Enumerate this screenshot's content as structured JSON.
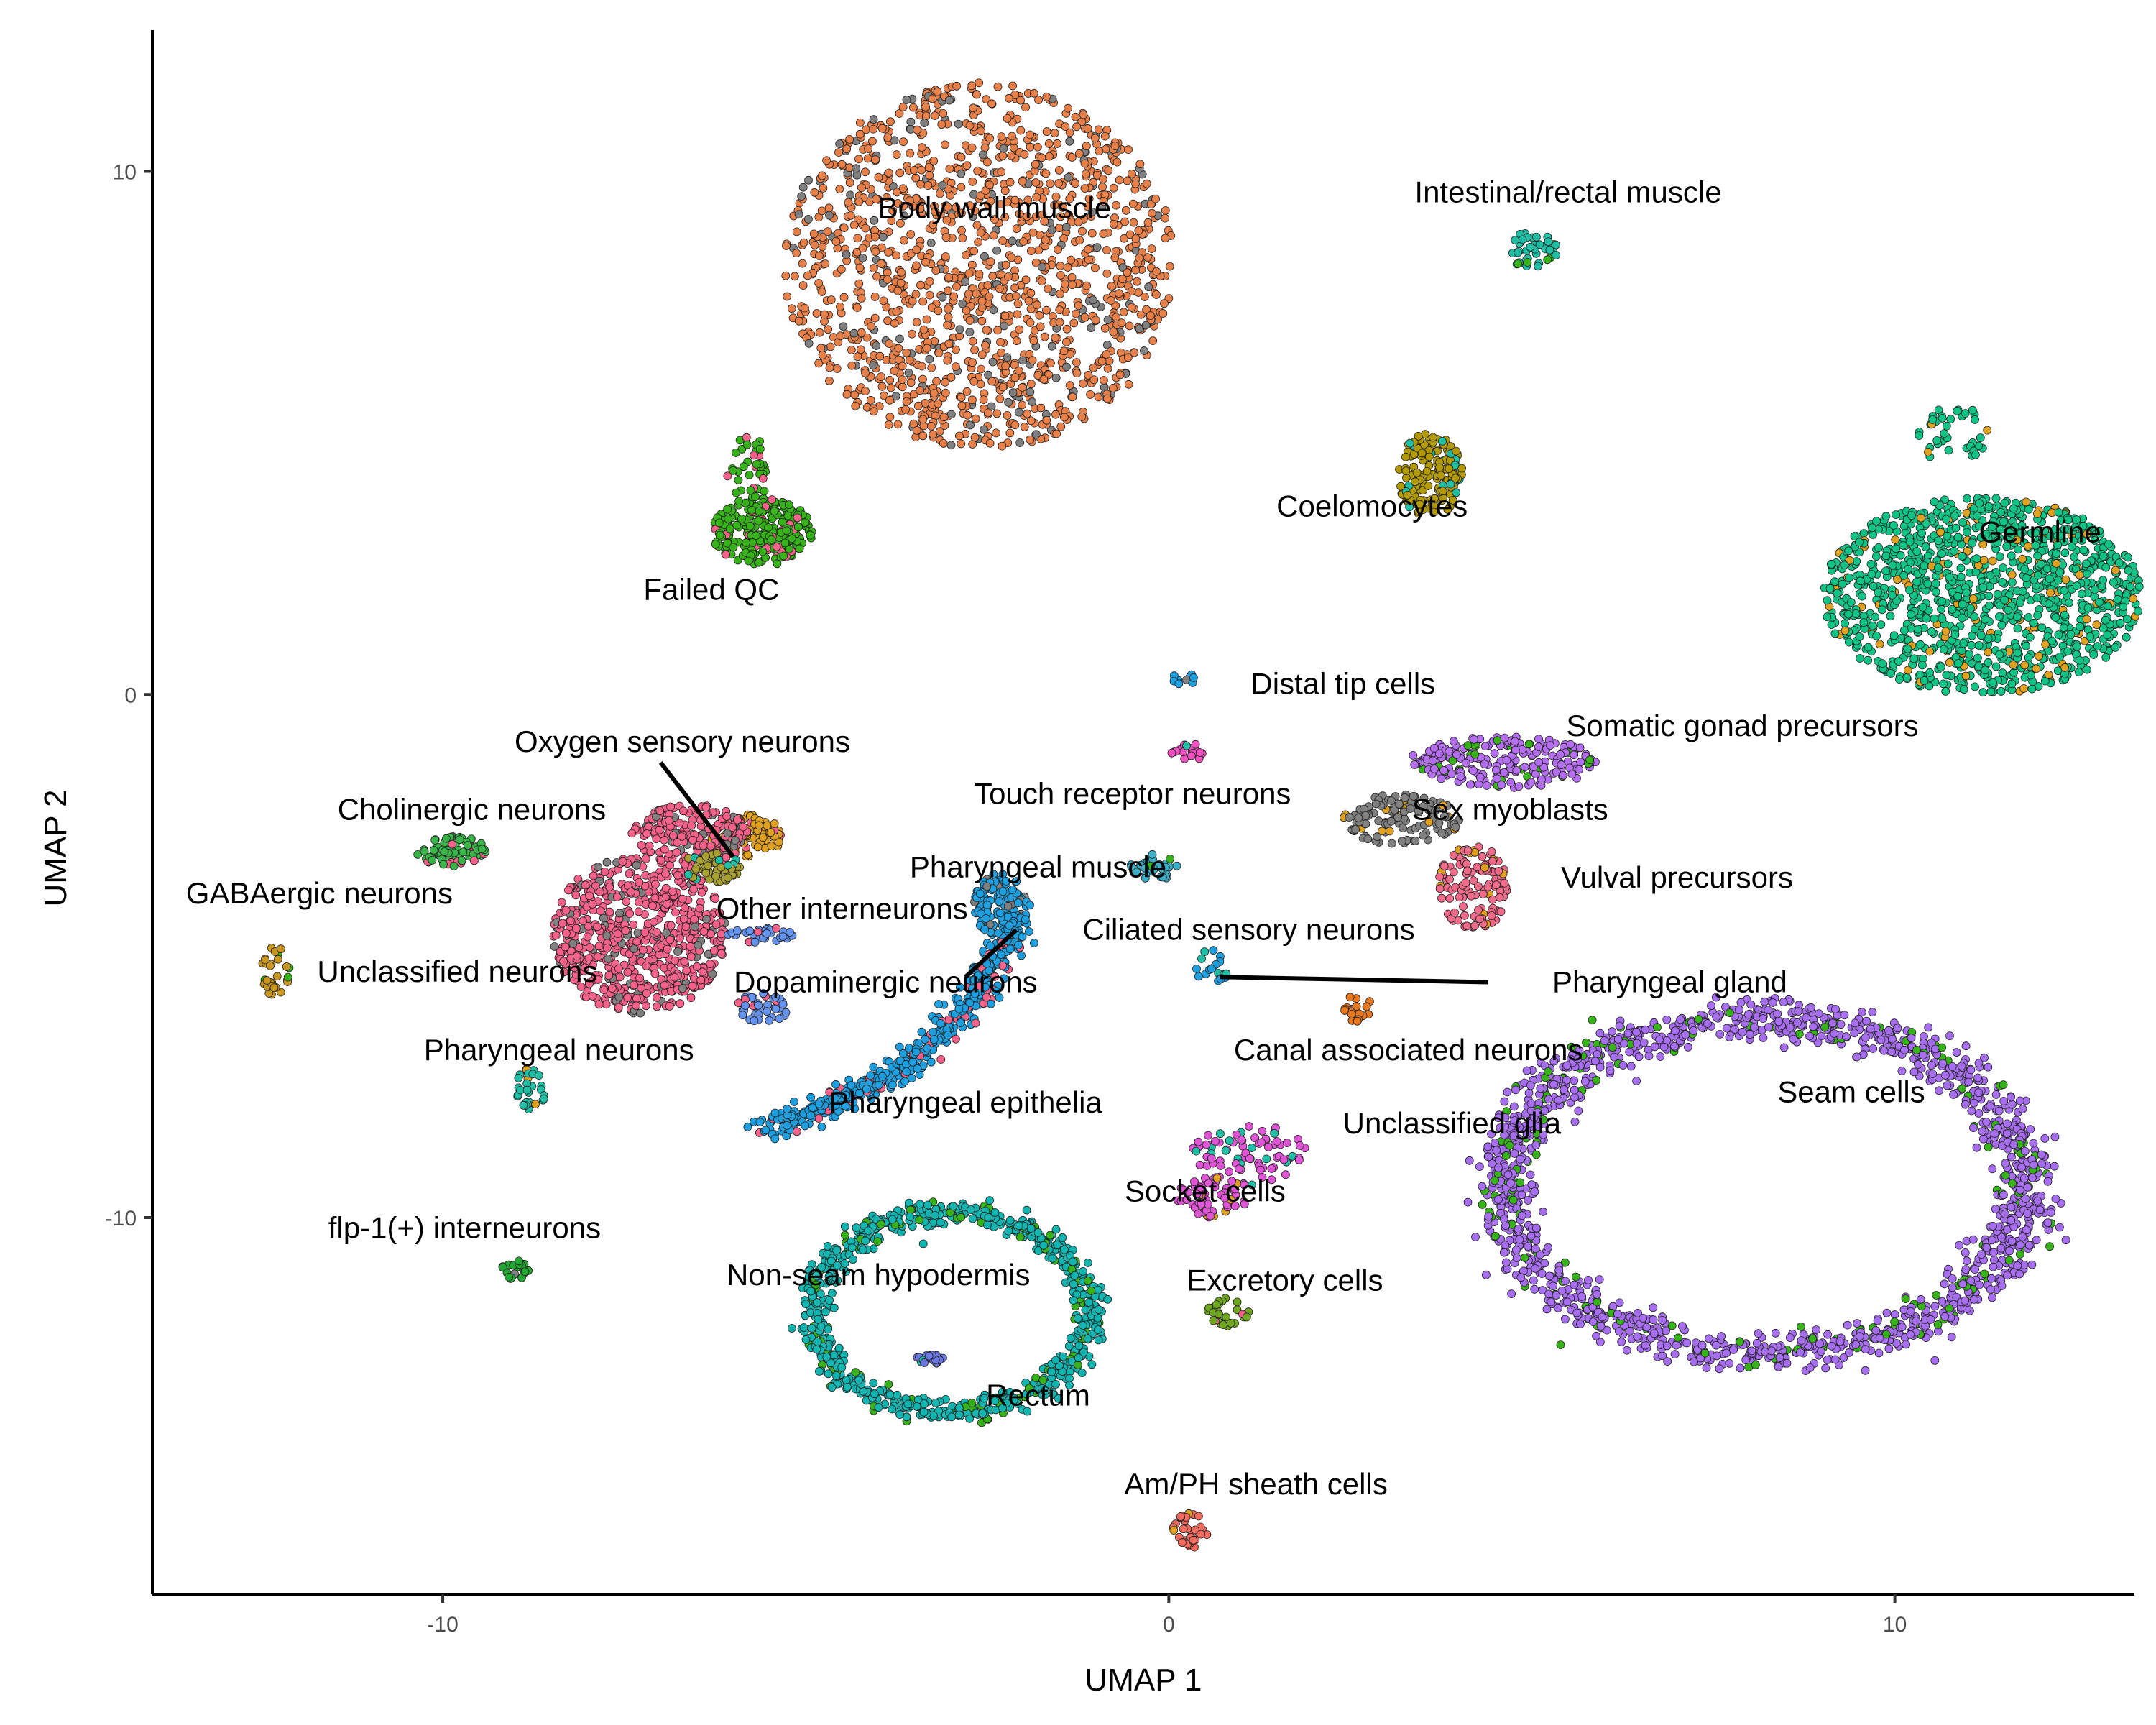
{
  "chart_data": {
    "type": "scatter",
    "title": "",
    "xlabel": "UMAP 1",
    "ylabel": "UMAP 2",
    "xlim": [
      -14,
      13.3
    ],
    "ylim": [
      -17.2,
      12.7
    ],
    "xticks": [
      -10,
      0,
      10
    ],
    "yticks": [
      10,
      0,
      -10
    ],
    "grid": false,
    "legend": "none",
    "clusters": [
      {
        "label": "Body wall muscle",
        "color": "#E8804A",
        "blobs": [
          [
            -2.6,
            8.2,
            2.7,
            3.5,
            1400
          ]
        ],
        "label_pos": [
          -2.4,
          9.3
        ]
      },
      {
        "label": "Intestinal/rectal muscle",
        "color": "#1FBFA6",
        "blobs": [
          [
            5.0,
            8.5,
            0.35,
            0.35,
            40
          ]
        ],
        "label_pos": [
          5.5,
          9.6
        ]
      },
      {
        "label": "Failed QC",
        "color": "#37B31A",
        "blobs": [
          [
            -5.6,
            3.1,
            0.7,
            0.65,
            250
          ],
          [
            -5.8,
            4.3,
            0.3,
            0.7,
            40
          ]
        ],
        "label_pos": [
          -6.3,
          2.0
        ]
      },
      {
        "label": "Coelomocytes",
        "color": "#B39A00",
        "blobs": [
          [
            3.6,
            4.2,
            0.45,
            0.8,
            160
          ]
        ],
        "label_pos": [
          2.8,
          3.6
        ]
      },
      {
        "label": "Germline",
        "color": "#10C485",
        "blobs": [
          [
            11.2,
            1.9,
            2.2,
            1.9,
            1200
          ],
          [
            10.8,
            5.0,
            0.5,
            0.6,
            40
          ]
        ],
        "label_pos": [
          12.0,
          3.1
        ]
      },
      {
        "label": "Distal tip cells",
        "color": "#1E9FE0",
        "blobs": [
          [
            0.2,
            0.3,
            0.15,
            0.15,
            10
          ]
        ],
        "label_pos": [
          2.4,
          0.2
        ]
      },
      {
        "label": "Somatic gonad precursors",
        "color": "#B56EF0",
        "blobs": [
          [
            4.6,
            -1.3,
            1.3,
            0.5,
            220
          ]
        ],
        "label_pos": [
          7.9,
          -0.6
        ]
      },
      {
        "label": "Oxygen sensory neurons",
        "color": "#E0A020",
        "blobs": [
          [
            -5.8,
            -2.7,
            0.5,
            0.4,
            120
          ]
        ],
        "label_pos": [
          -6.7,
          -0.9
        ]
      },
      {
        "label": "Touch receptor neurons",
        "color": "#F050C0",
        "blobs": [
          [
            0.3,
            -1.1,
            0.3,
            0.15,
            20
          ]
        ],
        "label_pos": [
          -0.5,
          -1.9
        ]
      },
      {
        "label": "Sex myoblasts",
        "color": "#808080",
        "blobs": [
          [
            3.2,
            -2.4,
            0.8,
            0.5,
            120
          ]
        ],
        "label_pos": [
          4.7,
          -2.2
        ]
      },
      {
        "label": "Cholinergic neurons",
        "color": "#F6618A",
        "blobs": [
          [
            -7.3,
            -4.6,
            1.2,
            1.5,
            650
          ],
          [
            -6.6,
            -2.7,
            0.8,
            0.6,
            200
          ]
        ],
        "label_pos": [
          -9.6,
          -2.2
        ]
      },
      {
        "label": "Pharyngeal muscle",
        "color": "#3AB0C8",
        "blobs": [
          [
            -0.2,
            -3.3,
            0.35,
            0.25,
            30
          ]
        ],
        "label_pos": [
          -1.8,
          -3.3
        ]
      },
      {
        "label": "GABAergic neurons",
        "color": "#3AB54A",
        "blobs": [
          [
            -9.9,
            -3.0,
            0.5,
            0.3,
            80
          ]
        ],
        "label_pos": [
          -11.7,
          -3.8
        ]
      },
      {
        "label": "Other interneurons",
        "color": "#A8A030",
        "blobs": [
          [
            -6.3,
            -3.3,
            0.4,
            0.3,
            60
          ]
        ],
        "label_pos": [
          -4.5,
          -4.1
        ]
      },
      {
        "label": "Vulval precursors",
        "color": "#F06A8A",
        "blobs": [
          [
            4.2,
            -3.7,
            0.5,
            0.8,
            120
          ]
        ],
        "label_pos": [
          7.0,
          -3.5
        ]
      },
      {
        "label": "Ciliated sensory neurons",
        "color": "#1E9FE0",
        "blobs": [
          [
            -2.3,
            -4.1,
            0.4,
            0.7,
            150
          ]
        ],
        "label_pos": [
          1.1,
          -4.5
        ]
      },
      {
        "label": "Unclassified neurons",
        "color": "#C8961E",
        "blobs": [
          [
            -12.3,
            -5.3,
            0.2,
            0.5,
            30
          ]
        ],
        "label_pos": [
          -9.8,
          -5.3
        ]
      },
      {
        "label": "Dopaminergic neurons",
        "color": "#6494F0",
        "blobs": [
          [
            -5.6,
            -6.0,
            0.35,
            0.3,
            40
          ],
          [
            -5.6,
            -4.6,
            0.5,
            0.15,
            30
          ]
        ],
        "label_pos": [
          -3.9,
          -5.5
        ]
      },
      {
        "label": "Pharyngeal gland",
        "color": "#1E9FE0",
        "blobs": [
          [
            0.6,
            -5.2,
            0.25,
            0.4,
            20
          ]
        ],
        "label_pos": [
          6.9,
          -5.5
        ]
      },
      {
        "label": "Pharyngeal neurons",
        "color": "#1FBFA6",
        "blobs": [
          [
            -8.8,
            -7.6,
            0.2,
            0.5,
            30
          ]
        ],
        "label_pos": [
          -8.4,
          -6.8
        ]
      },
      {
        "label": "Canal associated neurons",
        "color": "#E87820",
        "blobs": [
          [
            2.6,
            -6.0,
            0.2,
            0.3,
            20
          ]
        ],
        "label_pos": [
          3.3,
          -6.8
        ]
      },
      {
        "label": "Seam cells",
        "color": "#A86EF0",
        "ring": [
          8.2,
          -9.4,
          3.6,
          3.2,
          1600
        ],
        "label_pos": [
          9.4,
          -7.6
        ]
      },
      {
        "label": "Pharyngeal epithelia",
        "color": "#1E9FE0",
        "arc": [
          [
            -5.5,
            -8.3
          ],
          [
            -3.8,
            -7.6
          ],
          [
            -2.6,
            -6.2
          ],
          [
            -2.1,
            -4.2
          ],
          500
        ],
        "label_pos": [
          -2.8,
          -7.8
        ]
      },
      {
        "label": "Unclassified glia",
        "color": "#E055D5",
        "blobs": [
          [
            1.1,
            -8.8,
            0.8,
            0.6,
            80
          ]
        ],
        "label_pos": [
          3.9,
          -8.2
        ]
      },
      {
        "label": "Socket cells",
        "color": "#E055D5",
        "blobs": [
          [
            0.6,
            -9.6,
            0.5,
            0.4,
            60
          ]
        ],
        "label_pos": [
          0.5,
          -9.5
        ]
      },
      {
        "label": "flp-1(+) interneurons",
        "color": "#22A832",
        "blobs": [
          [
            -9.0,
            -11.0,
            0.2,
            0.2,
            20
          ]
        ],
        "label_pos": [
          -9.7,
          -10.2
        ]
      },
      {
        "label": "Non-seam hypodermis",
        "color": "#12B5B0",
        "ring": [
          -3.0,
          -11.8,
          1.9,
          1.9,
          800
        ],
        "label_pos": [
          -4.0,
          -11.1
        ]
      },
      {
        "label": "Excretory cells",
        "color": "#6FA81E",
        "blobs": [
          [
            0.8,
            -11.8,
            0.3,
            0.3,
            30
          ]
        ],
        "label_pos": [
          1.6,
          -11.2
        ]
      },
      {
        "label": "Rectum",
        "color": "#6B76E0",
        "blobs": [
          [
            -3.3,
            -12.7,
            0.2,
            0.1,
            20
          ]
        ],
        "label_pos": [
          -1.8,
          -13.4
        ]
      },
      {
        "label": "Am/PH sheath cells",
        "color": "#F26B5E",
        "blobs": [
          [
            0.3,
            -16.0,
            0.25,
            0.35,
            40
          ]
        ],
        "label_pos": [
          1.2,
          -15.1
        ]
      }
    ],
    "leader_lines": [
      {
        "label": "Oxygen sensory neurons",
        "from": [
          -7.0,
          -1.3
        ],
        "to": [
          -6.0,
          -3.1
        ]
      },
      {
        "label": "Ciliated sensory neurons",
        "from": [
          -2.1,
          -4.5
        ],
        "to": [
          -2.8,
          -5.4
        ]
      },
      {
        "label": "Pharyngeal gland",
        "from": [
          4.4,
          -5.5
        ],
        "to": [
          0.7,
          -5.4
        ]
      }
    ]
  }
}
